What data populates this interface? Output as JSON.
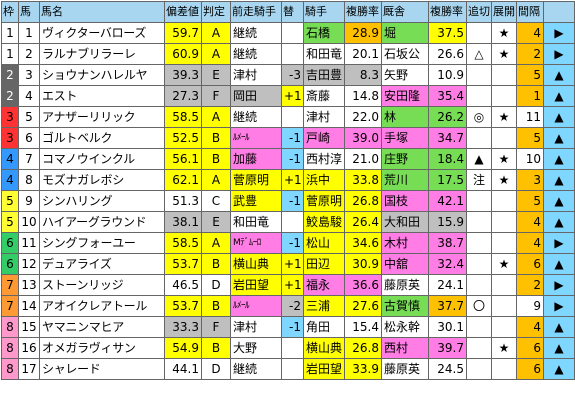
{
  "headers": [
    "枠",
    "馬",
    "馬名",
    "偏差値",
    "判定",
    "前走騎手",
    "替",
    "騎手",
    "複勝率",
    "厩舎",
    "複勝率",
    "追切",
    "展開",
    "間隔",
    ""
  ],
  "colors": {
    "waku": {
      "1": "#ffffff",
      "2": "#666666",
      "3": "#ff3333",
      "4": "#3399ff",
      "5": "#ffff33",
      "6": "#33cc66",
      "7": "#ff9933",
      "8": "#ff99cc"
    },
    "yellow": "#ffff00",
    "green": "#77dd55",
    "gold": "#ffc000",
    "pink": "#ff7de4",
    "sky": "#7fd6ff",
    "grey": "#bfbfbf",
    "header": "#a8d6f0",
    "border": "#666666"
  },
  "rows": [
    {
      "waku": "1",
      "num": "1",
      "name": "ヴィクターバローズ",
      "dev": "59.7",
      "grade": "A",
      "prev_jockey": "継続",
      "change": "",
      "jockey": "石橋",
      "jrate": "28.9",
      "trainer": "堀",
      "trate": "37.5",
      "oikiri": "",
      "tenkai": "★",
      "interval": "4",
      "dir": "▶",
      "bg": {
        "dev": "yellow",
        "grade": "yellow",
        "prev": "",
        "change": "",
        "jockey": "green",
        "jrate": "gold",
        "trainer": "green",
        "trate": "yellow",
        "tenkai": "",
        "interval": "gold",
        "dir": "sky"
      }
    },
    {
      "waku": "1",
      "num": "2",
      "name": "ラルナブリラーレ",
      "dev": "60.9",
      "grade": "A",
      "prev_jockey": "継続",
      "change": "",
      "jockey": "和田竜",
      "jrate": "20.1",
      "trainer": "石坂公",
      "trate": "26.6",
      "oikiri": "△",
      "tenkai": "★",
      "interval": "2",
      "dir": "▶",
      "bg": {
        "dev": "yellow",
        "grade": "yellow",
        "prev": "",
        "change": "",
        "jockey": "",
        "jrate": "",
        "trainer": "",
        "trate": "",
        "tenkai": "",
        "interval": "gold",
        "dir": "sky"
      }
    },
    {
      "waku": "2",
      "num": "3",
      "name": "ショウナンハレルヤ",
      "dev": "39.3",
      "grade": "E",
      "prev_jockey": "津村",
      "change": "-3",
      "jockey": "吉田豊",
      "jrate": "8.3",
      "trainer": "矢野",
      "trate": "10.9",
      "oikiri": "",
      "tenkai": "",
      "interval": "5",
      "dir": "▲",
      "bg": {
        "dev": "grey",
        "grade": "grey",
        "prev": "",
        "change": "grey",
        "jockey": "grey",
        "jrate": "grey",
        "trainer": "",
        "trate": "",
        "tenkai": "",
        "interval": "gold",
        "dir": "sky"
      }
    },
    {
      "waku": "2",
      "num": "4",
      "name": "エスト",
      "dev": "27.3",
      "grade": "F",
      "prev_jockey": "岡田",
      "change": "+1",
      "jockey": "斎藤",
      "jrate": "14.8",
      "trainer": "安田隆",
      "trate": "35.4",
      "oikiri": "",
      "tenkai": "",
      "interval": "1",
      "dir": "▲",
      "bg": {
        "dev": "grey",
        "grade": "grey",
        "prev": "grey",
        "change": "yellow",
        "jockey": "",
        "jrate": "",
        "trainer": "pink",
        "trate": "pink",
        "tenkai": "",
        "interval": "gold",
        "dir": "sky"
      }
    },
    {
      "waku": "3",
      "num": "5",
      "name": "アナザーリリック",
      "dev": "58.5",
      "grade": "A",
      "prev_jockey": "継続",
      "change": "",
      "jockey": "津村",
      "jrate": "22.0",
      "trainer": "林",
      "trate": "26.2",
      "oikiri": "◎",
      "tenkai": "★",
      "interval": "11",
      "dir": "▲",
      "bg": {
        "dev": "yellow",
        "grade": "yellow",
        "prev": "",
        "change": "",
        "jockey": "",
        "jrate": "",
        "trainer": "green",
        "trate": "green",
        "tenkai": "",
        "interval": "",
        "dir": "sky"
      }
    },
    {
      "waku": "3",
      "num": "6",
      "name": "ゴルトベルク",
      "dev": "52.5",
      "grade": "B",
      "prev_jockey": "ﾙﾒｰﾙ",
      "change": "-1",
      "jockey": "戸崎",
      "jrate": "39.0",
      "trainer": "手塚",
      "trate": "34.7",
      "oikiri": "",
      "tenkai": "",
      "interval": "5",
      "dir": "▲",
      "bg": {
        "dev": "yellow",
        "grade": "yellow",
        "prev": "pink",
        "change": "sky",
        "jockey": "pink",
        "jrate": "pink",
        "trainer": "pink",
        "trate": "pink",
        "tenkai": "",
        "interval": "gold",
        "dir": "sky"
      }
    },
    {
      "waku": "4",
      "num": "7",
      "name": "コマノウインクル",
      "dev": "56.1",
      "grade": "B",
      "prev_jockey": "加藤",
      "change": "-1",
      "jockey": "西村淳",
      "jrate": "21.0",
      "trainer": "庄野",
      "trate": "18.4",
      "oikiri": "▲",
      "tenkai": "★",
      "interval": "10",
      "dir": "▲",
      "bg": {
        "dev": "yellow",
        "grade": "yellow",
        "prev": "pink",
        "change": "sky",
        "jockey": "",
        "jrate": "",
        "trainer": "green",
        "trate": "green",
        "tenkai": "",
        "interval": "",
        "dir": "sky"
      }
    },
    {
      "waku": "4",
      "num": "8",
      "name": "モズナガレボシ",
      "dev": "62.1",
      "grade": "A",
      "prev_jockey": "菅原明",
      "change": "+1",
      "jockey": "浜中",
      "jrate": "33.8",
      "trainer": "荒川",
      "trate": "17.5",
      "oikiri": "注",
      "tenkai": "★",
      "interval": "3",
      "dir": "▲",
      "bg": {
        "dev": "yellow",
        "grade": "yellow",
        "prev": "yellow",
        "change": "yellow",
        "jockey": "yellow",
        "jrate": "yellow",
        "trainer": "green",
        "trate": "green",
        "tenkai": "",
        "interval": "gold",
        "dir": "sky"
      }
    },
    {
      "waku": "5",
      "num": "9",
      "name": "シンハリング",
      "dev": "51.3",
      "grade": "C",
      "prev_jockey": "武豊",
      "change": "-1",
      "jockey": "菅原明",
      "jrate": "26.8",
      "trainer": "国枝",
      "trate": "42.1",
      "oikiri": "",
      "tenkai": "",
      "interval": "5",
      "dir": "▲",
      "bg": {
        "dev": "",
        "grade": "",
        "prev": "yellow",
        "change": "sky",
        "jockey": "yellow",
        "jrate": "yellow",
        "trainer": "pink",
        "trate": "pink",
        "tenkai": "",
        "interval": "gold",
        "dir": "sky"
      }
    },
    {
      "waku": "5",
      "num": "10",
      "name": "ハイアーグラウンド",
      "dev": "38.1",
      "grade": "E",
      "prev_jockey": "和田竜",
      "change": "",
      "jockey": "鮫島駿",
      "jrate": "26.4",
      "trainer": "大和田",
      "trate": "15.9",
      "oikiri": "",
      "tenkai": "",
      "interval": "4",
      "dir": "▲",
      "bg": {
        "dev": "grey",
        "grade": "grey",
        "prev": "",
        "change": "",
        "jockey": "yellow",
        "jrate": "yellow",
        "trainer": "grey",
        "trate": "grey",
        "tenkai": "",
        "interval": "gold",
        "dir": "sky"
      }
    },
    {
      "waku": "6",
      "num": "11",
      "name": "シングフォーユー",
      "dev": "58.5",
      "grade": "A",
      "prev_jockey": "Mﾃﾞﾑｰﾛ",
      "change": "-1",
      "jockey": "松山",
      "jrate": "34.6",
      "trainer": "木村",
      "trate": "38.7",
      "oikiri": "",
      "tenkai": "",
      "interval": "4",
      "dir": "▶",
      "bg": {
        "dev": "yellow",
        "grade": "yellow",
        "prev": "pink",
        "change": "sky",
        "jockey": "yellow",
        "jrate": "yellow",
        "trainer": "pink",
        "trate": "pink",
        "tenkai": "",
        "interval": "gold",
        "dir": "sky"
      }
    },
    {
      "waku": "6",
      "num": "12",
      "name": "デュアライズ",
      "dev": "53.7",
      "grade": "B",
      "prev_jockey": "横山典",
      "change": "+1",
      "jockey": "田辺",
      "jrate": "30.9",
      "trainer": "中舘",
      "trate": "32.4",
      "oikiri": "",
      "tenkai": "★",
      "interval": "6",
      "dir": "▲",
      "bg": {
        "dev": "yellow",
        "grade": "yellow",
        "prev": "yellow",
        "change": "yellow",
        "jockey": "yellow",
        "jrate": "yellow",
        "trainer": "pink",
        "trate": "pink",
        "tenkai": "",
        "interval": "gold",
        "dir": "sky"
      }
    },
    {
      "waku": "7",
      "num": "13",
      "name": "ストーンリッジ",
      "dev": "46.5",
      "grade": "D",
      "prev_jockey": "岩田望",
      "change": "+1",
      "jockey": "福永",
      "jrate": "36.6",
      "trainer": "藤原英",
      "trate": "24.1",
      "oikiri": "",
      "tenkai": "",
      "interval": "2",
      "dir": "▶",
      "bg": {
        "dev": "",
        "grade": "",
        "prev": "yellow",
        "change": "yellow",
        "jockey": "pink",
        "jrate": "pink",
        "trainer": "",
        "trate": "",
        "tenkai": "",
        "interval": "gold",
        "dir": "sky"
      }
    },
    {
      "waku": "7",
      "num": "14",
      "name": "アオイクレアトール",
      "dev": "53.7",
      "grade": "B",
      "prev_jockey": "ﾙﾒｰﾙ",
      "change": "-2",
      "jockey": "三浦",
      "jrate": "27.6",
      "trainer": "古賀慎",
      "trate": "37.7",
      "oikiri": "〇",
      "tenkai": "",
      "interval": "9",
      "dir": "▶",
      "bg": {
        "dev": "yellow",
        "grade": "yellow",
        "prev": "pink",
        "change": "grey",
        "jockey": "yellow",
        "jrate": "yellow",
        "trainer": "green",
        "trate": "gold",
        "tenkai": "",
        "interval": "",
        "dir": "sky"
      }
    },
    {
      "waku": "8",
      "num": "15",
      "name": "ヤマニンマヒア",
      "dev": "33.3",
      "grade": "F",
      "prev_jockey": "津村",
      "change": "-1",
      "jockey": "角田",
      "jrate": "15.4",
      "trainer": "松永幹",
      "trate": "30.1",
      "oikiri": "",
      "tenkai": "",
      "interval": "4",
      "dir": "▲",
      "bg": {
        "dev": "grey",
        "grade": "grey",
        "prev": "",
        "change": "sky",
        "jockey": "",
        "jrate": "",
        "trainer": "",
        "trate": "",
        "tenkai": "",
        "interval": "gold",
        "dir": "sky"
      }
    },
    {
      "waku": "8",
      "num": "16",
      "name": "オメガラヴィサン",
      "dev": "54.9",
      "grade": "B",
      "prev_jockey": "大野",
      "change": "",
      "jockey": "横山典",
      "jrate": "26.8",
      "trainer": "西村",
      "trate": "39.7",
      "oikiri": "",
      "tenkai": "★",
      "interval": "6",
      "dir": "▲",
      "bg": {
        "dev": "yellow",
        "grade": "yellow",
        "prev": "",
        "change": "",
        "jockey": "yellow",
        "jrate": "yellow",
        "trainer": "pink",
        "trate": "pink",
        "tenkai": "",
        "interval": "gold",
        "dir": "sky"
      }
    },
    {
      "waku": "8",
      "num": "17",
      "name": "シャレード",
      "dev": "44.1",
      "grade": "D",
      "prev_jockey": "継続",
      "change": "",
      "jockey": "岩田望",
      "jrate": "33.9",
      "trainer": "藤原英",
      "trate": "24.5",
      "oikiri": "",
      "tenkai": "",
      "interval": "6",
      "dir": "▲",
      "bg": {
        "dev": "",
        "grade": "",
        "prev": "",
        "change": "",
        "jockey": "yellow",
        "jrate": "yellow",
        "trainer": "",
        "trate": "",
        "tenkai": "",
        "interval": "gold",
        "dir": "sky"
      }
    }
  ]
}
